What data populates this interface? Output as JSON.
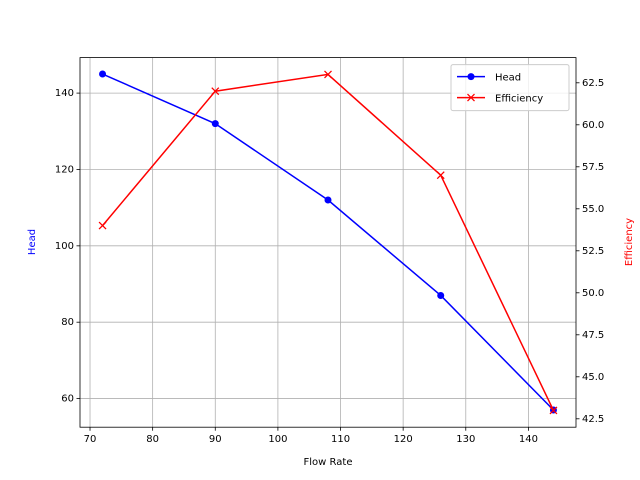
{
  "chart_data": {
    "type": "line",
    "x_label": "Flow Rate",
    "y_label": "Head",
    "y2_label": "Efficiency",
    "x": [
      72,
      90,
      108,
      126,
      144
    ],
    "series": [
      {
        "name": "Head",
        "color": "#0000ff",
        "marker": "circle",
        "values": [
          145,
          132,
          112,
          87,
          57
        ]
      },
      {
        "name": "Efficiency",
        "color": "#ff0000",
        "marker": "x",
        "axis": "y2",
        "values": [
          54,
          62,
          63,
          57,
          43
        ]
      }
    ],
    "xlim": [
      68.4,
      147.6
    ],
    "xticks": [
      70,
      80,
      90,
      100,
      110,
      120,
      130,
      140
    ],
    "ylim": [
      52.5,
      149.3
    ],
    "yticks": [
      60,
      80,
      100,
      120,
      140
    ],
    "y2lim": [
      42.0,
      64.0
    ],
    "y2ticks": [
      42.5,
      {
        "value": 45,
        "label": "45.0"
      },
      47.5,
      {
        "value": 50,
        "label": "50.0"
      },
      52.5,
      {
        "value": 55,
        "label": "55.0"
      },
      57.5,
      {
        "value": 60,
        "label": "60.0"
      },
      62.5
    ],
    "grid": true,
    "legend": "upper right"
  }
}
